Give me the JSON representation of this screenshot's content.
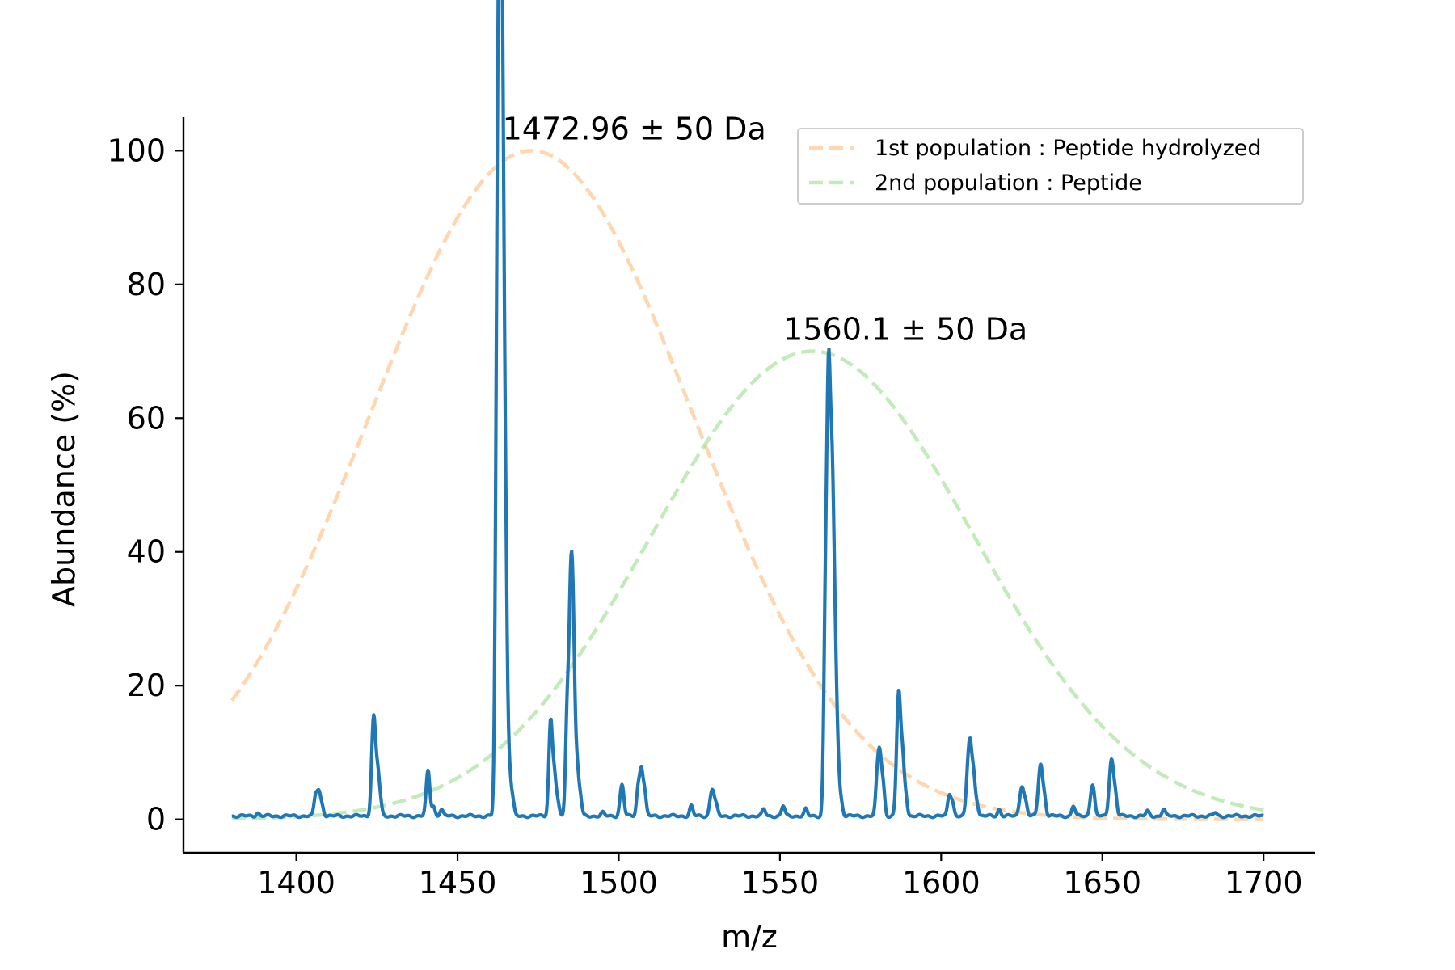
{
  "chart_data": {
    "type": "line",
    "title": "",
    "xlabel": "m/z",
    "ylabel": "Abundance (%)",
    "xlim": [
      1365,
      1716
    ],
    "ylim": [
      -5,
      105
    ],
    "x_ticks": [
      1400,
      1450,
      1500,
      1550,
      1600,
      1650,
      1700
    ],
    "y_ticks": [
      0,
      20,
      40,
      60,
      80,
      100
    ],
    "grid": false,
    "legend_position": "top-right",
    "annotations": [
      {
        "text": "1472.96 ± 50 Da",
        "x": 1472.96,
        "y": 100
      },
      {
        "text": "1560.1 ± 50 Da",
        "x": 1560.1,
        "y": 70
      }
    ],
    "series": [
      {
        "name": "1st population : Peptide hydrolyzed",
        "kind": "gaussian",
        "center": 1472.96,
        "amplitude": 100,
        "sigma": 50,
        "x_range": [
          1380,
          1700
        ],
        "color": "#ffbb78",
        "style": "dashed"
      },
      {
        "name": "2nd population : Peptide",
        "kind": "gaussian",
        "center": 1560.1,
        "amplitude": 70,
        "sigma": 50,
        "x_range": [
          1380,
          1700
        ],
        "color": "#98df8a",
        "style": "dashed"
      },
      {
        "kind": "spectrum",
        "color": "#1f77b4",
        "style": "solid",
        "x_range": [
          1380,
          1700
        ],
        "baseline": 0.5,
        "peaks": [
          {
            "x": 1388,
            "y": 1.0
          },
          {
            "x": 1406,
            "y": 3.5
          },
          {
            "x": 1407,
            "y": 3.8
          },
          {
            "x": 1408,
            "y": 2.0
          },
          {
            "x": 1423.6,
            "y": 7.8
          },
          {
            "x": 1424.2,
            "y": 10.7
          },
          {
            "x": 1425.2,
            "y": 6.5
          },
          {
            "x": 1426,
            "y": 2.5
          },
          {
            "x": 1440.5,
            "y": 3.0
          },
          {
            "x": 1441,
            "y": 5.5
          },
          {
            "x": 1442.5,
            "y": 2.0
          },
          {
            "x": 1445,
            "y": 1.5
          },
          {
            "x": 1462.2,
            "y": 58.5
          },
          {
            "x": 1463.0,
            "y": 100
          },
          {
            "x": 1463.6,
            "y": 44.5
          },
          {
            "x": 1464.0,
            "y": 61.5
          },
          {
            "x": 1464.6,
            "y": 19.5
          },
          {
            "x": 1465.0,
            "y": 24.5
          },
          {
            "x": 1466.0,
            "y": 7.0
          },
          {
            "x": 1467,
            "y": 3.0
          },
          {
            "x": 1478.6,
            "y": 6.0
          },
          {
            "x": 1479.0,
            "y": 10.2
          },
          {
            "x": 1480.0,
            "y": 6.5
          },
          {
            "x": 1481,
            "y": 2.5
          },
          {
            "x": 1484.0,
            "y": 15.5
          },
          {
            "x": 1485.0,
            "y": 26.0
          },
          {
            "x": 1485.6,
            "y": 15.0
          },
          {
            "x": 1486.0,
            "y": 16.0
          },
          {
            "x": 1487.0,
            "y": 7.5
          },
          {
            "x": 1488,
            "y": 3.5
          },
          {
            "x": 1495,
            "y": 1.0
          },
          {
            "x": 1500.6,
            "y": 2.5
          },
          {
            "x": 1501.2,
            "y": 4.0
          },
          {
            "x": 1506.0,
            "y": 4.5
          },
          {
            "x": 1507.0,
            "y": 7.0
          },
          {
            "x": 1508.0,
            "y": 4.0
          },
          {
            "x": 1522.5,
            "y": 2.0
          },
          {
            "x": 1528.5,
            "y": 2.5
          },
          {
            "x": 1529.2,
            "y": 3.5
          },
          {
            "x": 1530.2,
            "y": 2.0
          },
          {
            "x": 1545,
            "y": 1.5
          },
          {
            "x": 1551,
            "y": 2.0
          },
          {
            "x": 1558,
            "y": 1.5
          },
          {
            "x": 1564.1,
            "y": 29.5
          },
          {
            "x": 1565.0,
            "y": 51.0
          },
          {
            "x": 1565.6,
            "y": 22.5
          },
          {
            "x": 1566.2,
            "y": 33.5
          },
          {
            "x": 1566.8,
            "y": 16.0
          },
          {
            "x": 1567.3,
            "y": 12.5
          },
          {
            "x": 1568.0,
            "y": 6.5
          },
          {
            "x": 1569,
            "y": 2.5
          },
          {
            "x": 1580.2,
            "y": 6.0
          },
          {
            "x": 1581.0,
            "y": 8.5
          },
          {
            "x": 1582.0,
            "y": 5.0
          },
          {
            "x": 1586.4,
            "y": 8.5
          },
          {
            "x": 1587.0,
            "y": 14.0
          },
          {
            "x": 1588.0,
            "y": 9.0
          },
          {
            "x": 1589,
            "y": 3.5
          },
          {
            "x": 1602.5,
            "y": 3.5
          },
          {
            "x": 1603.5,
            "y": 2.5
          },
          {
            "x": 1608.2,
            "y": 6.0
          },
          {
            "x": 1609.0,
            "y": 9.8
          },
          {
            "x": 1610.0,
            "y": 6.5
          },
          {
            "x": 1611,
            "y": 2.5
          },
          {
            "x": 1618,
            "y": 1.5
          },
          {
            "x": 1624.5,
            "y": 2.5
          },
          {
            "x": 1625.2,
            "y": 4.0
          },
          {
            "x": 1626.2,
            "y": 2.5
          },
          {
            "x": 1630.3,
            "y": 4.0
          },
          {
            "x": 1631.0,
            "y": 6.5
          },
          {
            "x": 1632.0,
            "y": 3.5
          },
          {
            "x": 1641,
            "y": 2.0
          },
          {
            "x": 1646.5,
            "y": 3.0
          },
          {
            "x": 1647.2,
            "y": 4.0
          },
          {
            "x": 1652.3,
            "y": 4.5
          },
          {
            "x": 1653.0,
            "y": 7.0
          },
          {
            "x": 1654.0,
            "y": 4.0
          },
          {
            "x": 1664,
            "y": 1.2
          },
          {
            "x": 1669,
            "y": 1.5
          },
          {
            "x": 1685,
            "y": 1.0
          }
        ]
      }
    ]
  }
}
